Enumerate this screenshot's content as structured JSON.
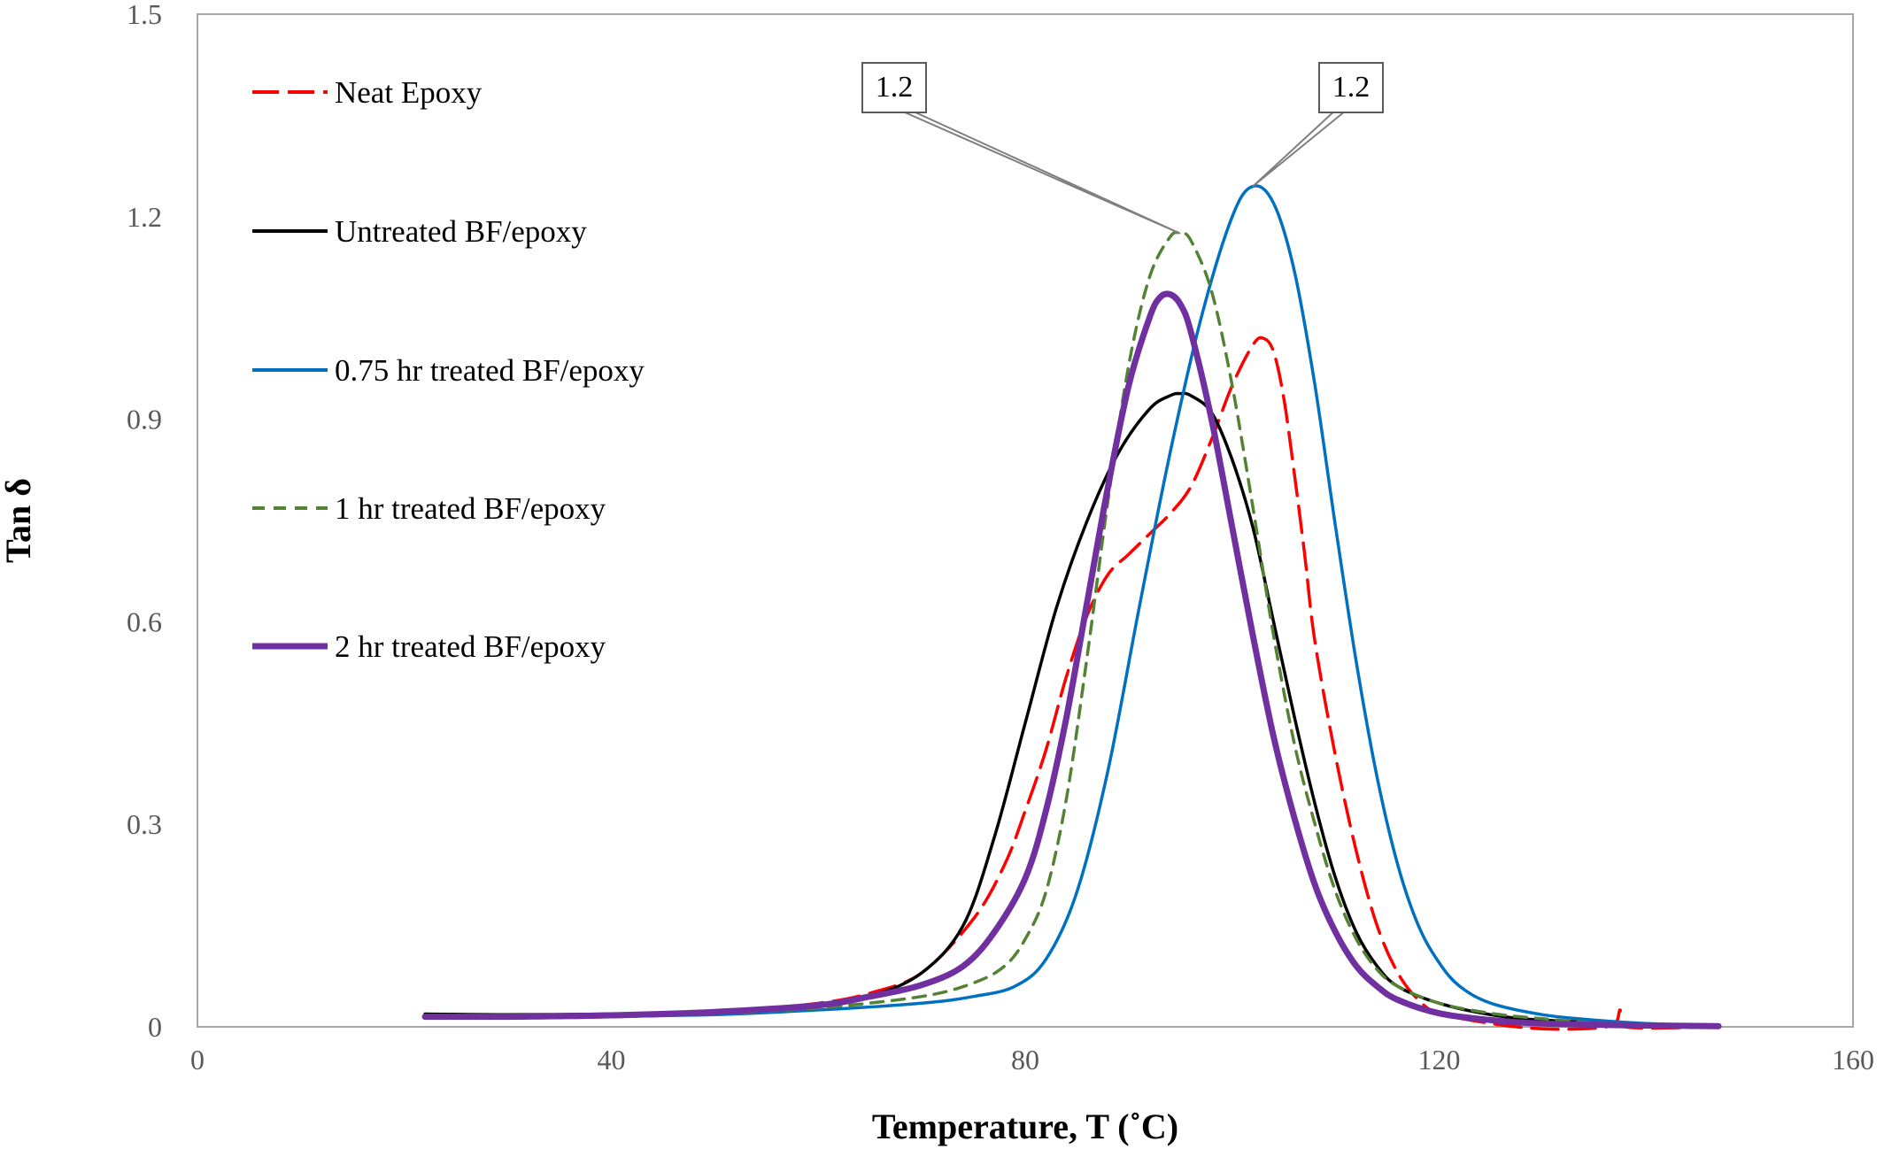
{
  "chart_data": {
    "type": "line",
    "title": "",
    "xlabel": "Temperature, T (˚C)",
    "ylabel": "Tan δ",
    "xlim": [
      0,
      160
    ],
    "ylim": [
      0,
      1.5
    ],
    "x_ticks": [
      {
        "value": 0,
        "label": "0"
      },
      {
        "value": 40,
        "label": "40"
      },
      {
        "value": 80,
        "label": "80"
      },
      {
        "value": 120,
        "label": "120"
      },
      {
        "value": 160,
        "label": "160"
      }
    ],
    "y_ticks": [
      {
        "value": 0,
        "label": "0"
      },
      {
        "value": 0.3,
        "label": "0.3"
      },
      {
        "value": 0.6,
        "label": "0.6"
      },
      {
        "value": 0.9,
        "label": "0.9"
      },
      {
        "value": 1.2,
        "label": "1.2"
      },
      {
        "value": 1.5,
        "label": "1.5"
      }
    ],
    "grid": false,
    "legend_position": "left",
    "series": [
      {
        "name": "Neat Epoxy",
        "color": "#ff0000",
        "dash": "long-dash",
        "points": [
          [
            22,
            0.015
          ],
          [
            30,
            0.013
          ],
          [
            40,
            0.015
          ],
          [
            50,
            0.02
          ],
          [
            60,
            0.035
          ],
          [
            65,
            0.05
          ],
          [
            70,
            0.08
          ],
          [
            75,
            0.16
          ],
          [
            78,
            0.24
          ],
          [
            80,
            0.32
          ],
          [
            82,
            0.41
          ],
          [
            84,
            0.52
          ],
          [
            86,
            0.61
          ],
          [
            88,
            0.67
          ],
          [
            90,
            0.7
          ],
          [
            92,
            0.73
          ],
          [
            94,
            0.76
          ],
          [
            96,
            0.8
          ],
          [
            98,
            0.87
          ],
          [
            100,
            0.95
          ],
          [
            102,
            1.01
          ],
          [
            103,
            1.02
          ],
          [
            104,
            1.0
          ],
          [
            105,
            0.93
          ],
          [
            106,
            0.82
          ],
          [
            107,
            0.7
          ],
          [
            108,
            0.57
          ],
          [
            110,
            0.4
          ],
          [
            112,
            0.26
          ],
          [
            114,
            0.15
          ],
          [
            116,
            0.08
          ],
          [
            118,
            0.04
          ],
          [
            120,
            0.02
          ],
          [
            125,
            0.005
          ],
          [
            130,
            -0.003
          ],
          [
            135,
            -0.002
          ],
          [
            137,
            0.005
          ],
          [
            137.5,
            0.025
          ],
          [
            138,
            0.0
          ],
          [
            147,
            0.0
          ]
        ]
      },
      {
        "name": "Untreated BF/epoxy",
        "color": "#000000",
        "dash": "solid",
        "points": [
          [
            22,
            0.019
          ],
          [
            30,
            0.018
          ],
          [
            40,
            0.019
          ],
          [
            50,
            0.022
          ],
          [
            60,
            0.032
          ],
          [
            65,
            0.045
          ],
          [
            70,
            0.08
          ],
          [
            74,
            0.15
          ],
          [
            77,
            0.28
          ],
          [
            80,
            0.45
          ],
          [
            83,
            0.62
          ],
          [
            86,
            0.75
          ],
          [
            89,
            0.85
          ],
          [
            92,
            0.915
          ],
          [
            94,
            0.935
          ],
          [
            95,
            0.938
          ],
          [
            96,
            0.935
          ],
          [
            98,
            0.91
          ],
          [
            100,
            0.84
          ],
          [
            102,
            0.74
          ],
          [
            104,
            0.6
          ],
          [
            106,
            0.46
          ],
          [
            108,
            0.33
          ],
          [
            110,
            0.22
          ],
          [
            112,
            0.14
          ],
          [
            114,
            0.09
          ],
          [
            116,
            0.06
          ],
          [
            120,
            0.035
          ],
          [
            125,
            0.018
          ],
          [
            130,
            0.01
          ],
          [
            140,
            0.004
          ],
          [
            147,
            0.002
          ]
        ]
      },
      {
        "name": "0.75 hr treated BF/epoxy",
        "color": "#0070c0",
        "dash": "solid",
        "points": [
          [
            22,
            0.015
          ],
          [
            30,
            0.015
          ],
          [
            40,
            0.016
          ],
          [
            50,
            0.018
          ],
          [
            60,
            0.025
          ],
          [
            70,
            0.035
          ],
          [
            75,
            0.045
          ],
          [
            79,
            0.06
          ],
          [
            82,
            0.1
          ],
          [
            85,
            0.2
          ],
          [
            88,
            0.38
          ],
          [
            91,
            0.62
          ],
          [
            94,
            0.85
          ],
          [
            97,
            1.05
          ],
          [
            100,
            1.2
          ],
          [
            102,
            1.245
          ],
          [
            104,
            1.22
          ],
          [
            106,
            1.12
          ],
          [
            108,
            0.95
          ],
          [
            110,
            0.74
          ],
          [
            112,
            0.54
          ],
          [
            114,
            0.37
          ],
          [
            116,
            0.24
          ],
          [
            118,
            0.15
          ],
          [
            120,
            0.095
          ],
          [
            122,
            0.06
          ],
          [
            125,
            0.035
          ],
          [
            130,
            0.018
          ],
          [
            135,
            0.01
          ],
          [
            140,
            0.005
          ],
          [
            147,
            0.002
          ]
        ]
      },
      {
        "name": "1 hr treated BF/epoxy",
        "color": "#548235",
        "dash": "short-dash",
        "points": [
          [
            22,
            0.015
          ],
          [
            30,
            0.015
          ],
          [
            40,
            0.017
          ],
          [
            50,
            0.02
          ],
          [
            60,
            0.028
          ],
          [
            70,
            0.045
          ],
          [
            75,
            0.065
          ],
          [
            78,
            0.09
          ],
          [
            80,
            0.13
          ],
          [
            82,
            0.2
          ],
          [
            84,
            0.34
          ],
          [
            86,
            0.55
          ],
          [
            88,
            0.78
          ],
          [
            90,
            0.98
          ],
          [
            92,
            1.11
          ],
          [
            94,
            1.17
          ],
          [
            95,
            1.175
          ],
          [
            96,
            1.165
          ],
          [
            98,
            1.09
          ],
          [
            100,
            0.95
          ],
          [
            102,
            0.77
          ],
          [
            104,
            0.58
          ],
          [
            106,
            0.42
          ],
          [
            108,
            0.3
          ],
          [
            110,
            0.2
          ],
          [
            112,
            0.13
          ],
          [
            114,
            0.085
          ],
          [
            116,
            0.06
          ],
          [
            120,
            0.035
          ],
          [
            125,
            0.02
          ],
          [
            130,
            0.012
          ],
          [
            135,
            0.006
          ],
          [
            140,
            0.003
          ],
          [
            147,
            0.002
          ]
        ]
      },
      {
        "name": "2 hr treated BF/epoxy",
        "color": "#7030a0",
        "dash": "solid-thick",
        "points": [
          [
            22,
            0.015
          ],
          [
            30,
            0.015
          ],
          [
            40,
            0.017
          ],
          [
            50,
            0.022
          ],
          [
            60,
            0.032
          ],
          [
            65,
            0.045
          ],
          [
            70,
            0.062
          ],
          [
            74,
            0.09
          ],
          [
            77,
            0.14
          ],
          [
            80,
            0.22
          ],
          [
            82,
            0.32
          ],
          [
            84,
            0.46
          ],
          [
            86,
            0.63
          ],
          [
            88,
            0.8
          ],
          [
            90,
            0.95
          ],
          [
            92,
            1.05
          ],
          [
            93,
            1.08
          ],
          [
            94,
            1.085
          ],
          [
            95,
            1.07
          ],
          [
            96,
            1.03
          ],
          [
            98,
            0.9
          ],
          [
            100,
            0.74
          ],
          [
            102,
            0.58
          ],
          [
            104,
            0.43
          ],
          [
            106,
            0.31
          ],
          [
            108,
            0.21
          ],
          [
            110,
            0.14
          ],
          [
            112,
            0.09
          ],
          [
            114,
            0.06
          ],
          [
            116,
            0.04
          ],
          [
            120,
            0.02
          ],
          [
            125,
            0.01
          ],
          [
            130,
            0.005
          ],
          [
            140,
            0.002
          ],
          [
            147,
            0.001
          ]
        ]
      }
    ],
    "annotations": [
      {
        "text": "1.2",
        "target": [
          95,
          1.175
        ]
      },
      {
        "text": "1.2",
        "target": [
          102,
          1.245
        ]
      }
    ]
  }
}
